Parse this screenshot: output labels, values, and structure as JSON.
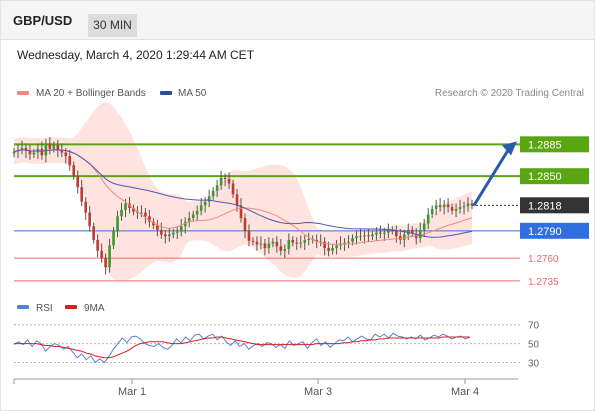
{
  "header": {
    "pair": "GBP/USD",
    "timeframe": "30 MIN"
  },
  "timestamp": "Wednesday, March 4, 2020 1:29:44 AM CET",
  "legend": {
    "ma20_bb": "MA 20 + Bollinger Bands",
    "ma50": "MA 50",
    "credit": "Research © 2020 Trading Central"
  },
  "colors": {
    "ma20": "#f08a80",
    "ma50": "#5056b8",
    "band_fill": "#ffd9d3",
    "resistance": "#5aa512",
    "current": "#333333",
    "pivot": "#2f6fe0",
    "support": "#ef6a6a",
    "arrow": "#2a5aa8",
    "candle_up": "#3a9a2a",
    "candle_down": "#c0392b",
    "rsi": "#5b7fd8",
    "rsi_ma": "#d82020"
  },
  "chart_data": [
    {
      "type": "candlestick",
      "symbol": "GBP/USD",
      "timeframe": "30 MIN",
      "x_ticks": [
        "Mar 1",
        "Mar 3",
        "Mar 4"
      ],
      "ylim": [
        1.2725,
        1.2915
      ],
      "levels": [
        {
          "label": "1.2885",
          "value": 1.2885,
          "kind": "resistance"
        },
        {
          "label": "1.2850",
          "value": 1.285,
          "kind": "resistance"
        },
        {
          "label": "1.2818",
          "value": 1.2818,
          "kind": "current"
        },
        {
          "label": "1.2790",
          "value": 1.279,
          "kind": "pivot"
        },
        {
          "label": "1.2760",
          "value": 1.276,
          "kind": "support"
        },
        {
          "label": "1.2735",
          "value": 1.2735,
          "kind": "support"
        }
      ],
      "forecast_target": 1.2885,
      "series_names": [
        "MA 20 + Bollinger Bands",
        "MA 50"
      ],
      "close": [
        1.2877,
        1.2879,
        1.2881,
        1.2878,
        1.2874,
        1.2876,
        1.288,
        1.2873,
        1.2886,
        1.288,
        1.2884,
        1.2878,
        1.2876,
        1.2872,
        1.2862,
        1.285,
        1.2838,
        1.2822,
        1.281,
        1.2795,
        1.278,
        1.2768,
        1.276,
        1.275,
        1.2774,
        1.279,
        1.2806,
        1.2813,
        1.282,
        1.2815,
        1.2811,
        1.281,
        1.281,
        1.2806,
        1.28,
        1.2796,
        1.2791,
        1.2786,
        1.2784,
        1.2786,
        1.2788,
        1.2789,
        1.2795,
        1.28,
        1.2804,
        1.2808,
        1.2812,
        1.2818,
        1.2822,
        1.2828,
        1.2834,
        1.284,
        1.2848,
        1.2847,
        1.2842,
        1.283,
        1.2818,
        1.2804,
        1.279,
        1.2779,
        1.2778,
        1.2775,
        1.2776,
        1.2771,
        1.2776,
        1.2778,
        1.2773,
        1.2768,
        1.277,
        1.278,
        1.2777,
        1.2776,
        1.2777,
        1.278,
        1.2781,
        1.278,
        1.2778,
        1.2778,
        1.2771,
        1.2768,
        1.2771,
        1.2774,
        1.2776,
        1.2777,
        1.2778,
        1.2782,
        1.2784,
        1.2784,
        1.2785,
        1.2784,
        1.2786,
        1.2788,
        1.2787,
        1.2788,
        1.2791,
        1.279,
        1.2784,
        1.278,
        1.2786,
        1.2791,
        1.2787,
        1.2782,
        1.2791,
        1.2798,
        1.2808,
        1.2814,
        1.2818,
        1.2816,
        1.2819,
        1.2816,
        1.2812,
        1.2814,
        1.2816,
        1.2817,
        1.282,
        1.2818
      ]
    },
    {
      "type": "line",
      "title": "RSI",
      "series_names": [
        "RSI",
        "9MA"
      ],
      "y_ticks": [
        70,
        50,
        30
      ],
      "ylim": [
        20,
        75
      ],
      "x_ticks": [
        "Mar 1",
        "Mar 3",
        "Mar 4"
      ],
      "rsi": [
        49,
        52,
        49,
        54,
        47,
        53,
        50,
        42,
        47,
        50,
        48,
        44,
        47,
        41,
        35,
        39,
        33,
        37,
        30,
        34,
        30,
        36,
        44,
        50,
        56,
        51,
        57,
        58,
        55,
        50,
        48,
        47,
        50,
        46,
        44,
        48,
        55,
        51,
        57,
        53,
        59,
        60,
        55,
        58,
        60,
        54,
        58,
        52,
        48,
        53,
        47,
        50,
        44,
        48,
        50,
        47,
        51,
        50,
        46,
        49,
        45,
        53,
        48,
        50,
        52,
        45,
        51,
        55,
        48,
        52,
        46,
        50,
        54,
        53,
        57,
        52,
        55,
        58,
        55,
        54,
        60,
        57,
        60,
        56,
        61,
        58,
        57,
        55,
        57,
        55,
        59,
        54,
        56,
        59,
        57,
        60,
        58,
        55,
        57,
        58,
        55,
        57
      ],
      "rsi_ma": [
        50,
        50,
        50,
        50,
        50,
        50,
        49,
        48,
        48,
        47,
        47,
        46,
        45,
        44,
        43,
        42,
        40,
        39,
        37,
        36,
        35,
        35,
        36,
        38,
        40,
        42,
        45,
        48,
        50,
        51,
        52,
        52,
        52,
        52,
        51,
        50,
        50,
        50,
        51,
        52,
        53,
        54,
        55,
        56,
        56,
        57,
        57,
        56,
        55,
        54,
        53,
        52,
        51,
        50,
        49,
        49,
        49,
        49,
        49,
        49,
        49,
        49,
        49,
        49,
        49,
        49,
        49,
        50,
        50,
        50,
        50,
        50,
        50,
        51,
        51,
        52,
        52,
        53,
        53,
        54,
        54,
        55,
        55,
        56,
        56,
        56,
        56,
        56,
        56,
        56,
        56,
        56,
        56,
        56,
        56,
        57,
        57,
        57,
        57,
        57,
        57,
        57
      ]
    }
  ]
}
